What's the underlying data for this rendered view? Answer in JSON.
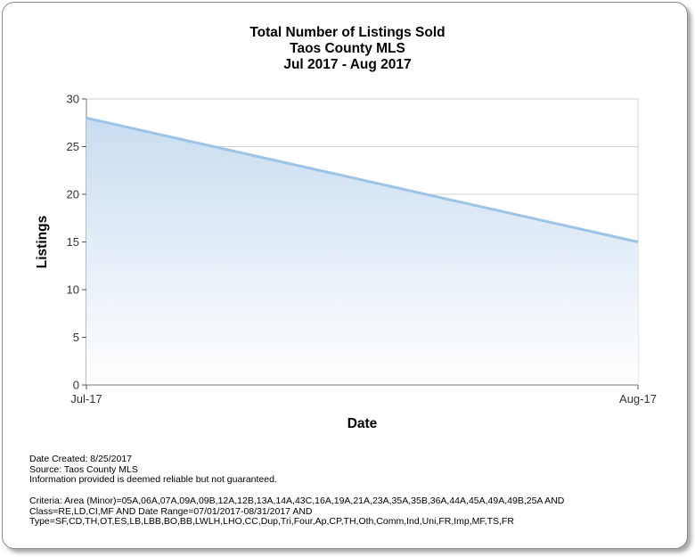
{
  "chart_data": {
    "type": "area",
    "title": [
      "Total Number of Listings Sold",
      "Taos County MLS",
      "Jul 2017 - Aug 2017"
    ],
    "xlabel": "Date",
    "ylabel": "Listings",
    "categories": [
      "Jul-17",
      "Aug-17"
    ],
    "series": [
      {
        "values": [
          28,
          15
        ]
      }
    ],
    "ylim": [
      0,
      30
    ],
    "yticks": [
      0,
      5,
      10,
      15,
      20,
      25,
      30
    ],
    "grid": true,
    "colors": {
      "line": "#9dc3e6",
      "fill_top": "#c9dcf0",
      "fill_bottom": "#ffffff",
      "grid": "#d0d0d0"
    }
  },
  "footer": {
    "date_created": "Date Created: 8/25/2017",
    "source": "Source: Taos County MLS",
    "disclaimer": "Information provided is deemed reliable but not guaranteed.",
    "criteria_1": "Criteria: Area (Minor)=05A,06A,07A,09A,09B,12A,12B,13A,14A,43C,16A,19A,21A,23A,35A,35B,36A,44A,45A,49A,49B,25A AND",
    "criteria_2": "Class=RE,LD,CI,MF AND Date Range=07/01/2017-08/31/2017 AND",
    "criteria_3": "Type=SF,CD,TH,OT,ES,LB,LBB,BO,BB,LWLH,LHO,CC,Dup,Tri,Four,Ap,CP,TH,Oth,Comm,Ind,Uni,FR,Imp,MF,TS,FR"
  }
}
